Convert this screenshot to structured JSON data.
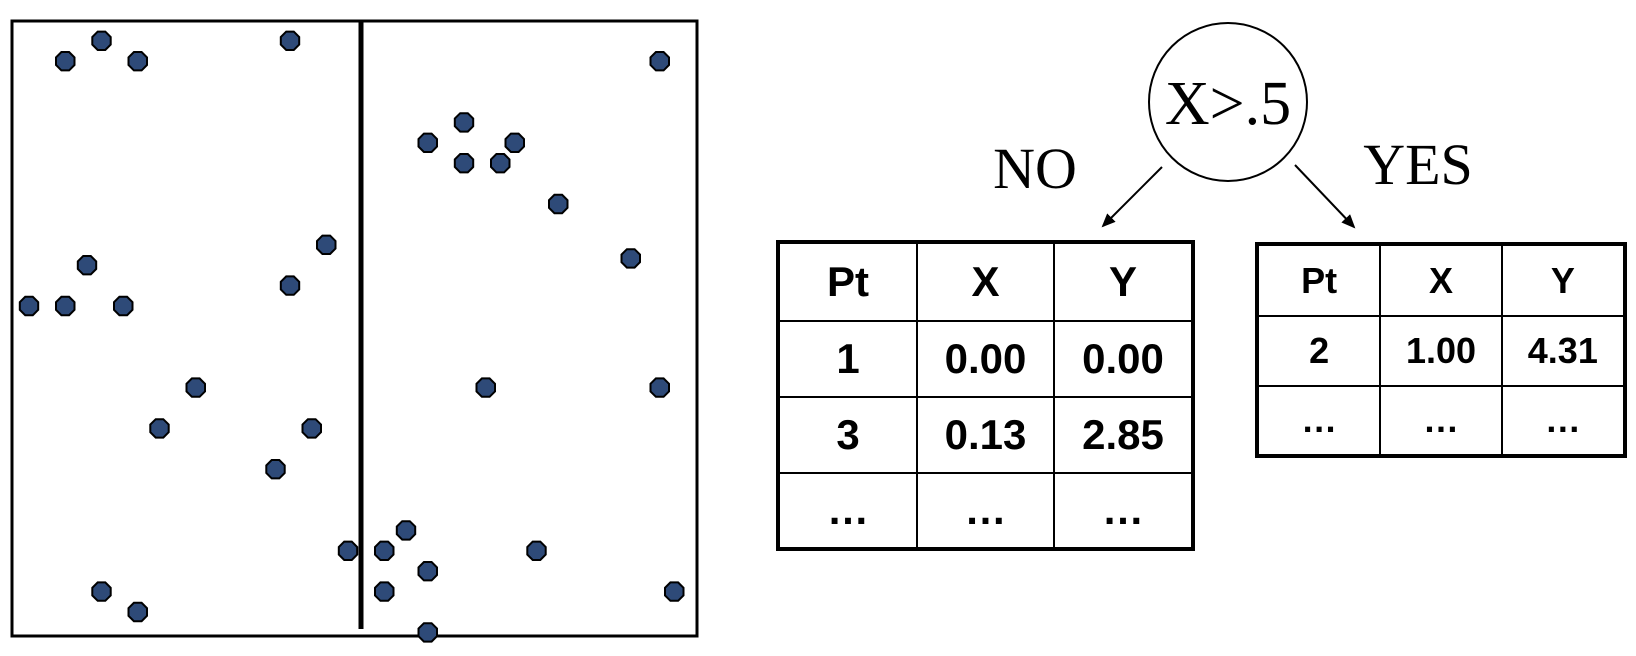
{
  "scatter": {
    "split_line_x": 0.5,
    "point_color": "#2e4a78",
    "points": [
      {
        "x": 0.09,
        "y": 0.91
      },
      {
        "x": 0.14,
        "y": 0.94
      },
      {
        "x": 0.19,
        "y": 0.91
      },
      {
        "x": 0.4,
        "y": 0.94
      },
      {
        "x": 0.91,
        "y": 0.91
      },
      {
        "x": 0.59,
        "y": 0.79
      },
      {
        "x": 0.64,
        "y": 0.82
      },
      {
        "x": 0.64,
        "y": 0.76
      },
      {
        "x": 0.69,
        "y": 0.76
      },
      {
        "x": 0.71,
        "y": 0.79
      },
      {
        "x": 0.77,
        "y": 0.7
      },
      {
        "x": 0.12,
        "y": 0.61
      },
      {
        "x": 0.45,
        "y": 0.64
      },
      {
        "x": 0.4,
        "y": 0.58
      },
      {
        "x": 0.87,
        "y": 0.62
      },
      {
        "x": 0.04,
        "y": 0.55
      },
      {
        "x": 0.09,
        "y": 0.55
      },
      {
        "x": 0.17,
        "y": 0.55
      },
      {
        "x": 0.27,
        "y": 0.43
      },
      {
        "x": 0.67,
        "y": 0.43
      },
      {
        "x": 0.91,
        "y": 0.43
      },
      {
        "x": 0.22,
        "y": 0.37
      },
      {
        "x": 0.43,
        "y": 0.37
      },
      {
        "x": 0.38,
        "y": 0.31
      },
      {
        "x": 0.48,
        "y": 0.19
      },
      {
        "x": 0.53,
        "y": 0.19
      },
      {
        "x": 0.56,
        "y": 0.22
      },
      {
        "x": 0.59,
        "y": 0.16
      },
      {
        "x": 0.74,
        "y": 0.19
      },
      {
        "x": 0.53,
        "y": 0.13
      },
      {
        "x": 0.14,
        "y": 0.13
      },
      {
        "x": 0.19,
        "y": 0.1
      },
      {
        "x": 0.93,
        "y": 0.13
      },
      {
        "x": 0.59,
        "y": 0.07
      }
    ]
  },
  "tree": {
    "root_label": "X>.5",
    "no_label": "NO",
    "yes_label": "YES"
  },
  "tables": {
    "no": {
      "headers": [
        "Pt",
        "X",
        "Y"
      ],
      "rows": [
        [
          "1",
          "0.00",
          "0.00"
        ],
        [
          "3",
          "0.13",
          "2.85"
        ],
        [
          "…",
          "…",
          "…"
        ]
      ]
    },
    "yes": {
      "headers": [
        "Pt",
        "X",
        "Y"
      ],
      "rows": [
        [
          "2",
          "1.00",
          "4.31"
        ],
        [
          "…",
          "…",
          "…"
        ]
      ]
    }
  }
}
